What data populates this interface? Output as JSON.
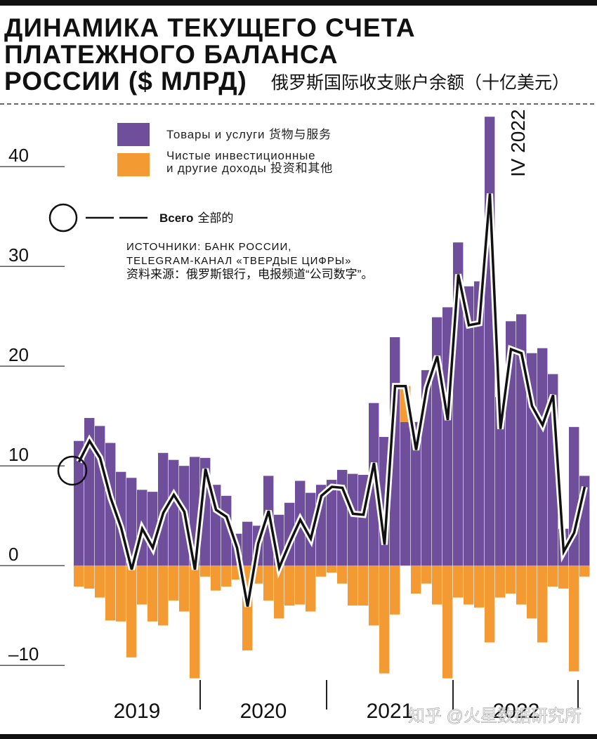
{
  "chart_data": {
    "type": "bar",
    "title_lines": [
      "ДИНАМИКА ТЕКУЩЕГО СЧЕТА",
      "ПЛАТЕЖНОГО БАЛАНСА",
      "РОССИИ ($ МЛРД)"
    ],
    "subtitle": "俄罗斯国际收支账户余额（十亿美元）",
    "categories": [
      null,
      null,
      null,
      null,
      null,
      null,
      null,
      null,
      null,
      null,
      null,
      null,
      null,
      null,
      null,
      null,
      null,
      null,
      null,
      null,
      null,
      null,
      null,
      null,
      null,
      null,
      null,
      null,
      null,
      null,
      null,
      null,
      null,
      null,
      null,
      null,
      null,
      null,
      null,
      null,
      null,
      null,
      null,
      null,
      null,
      null,
      null,
      null,
      null
    ],
    "year_labels": [
      "2019",
      "2020",
      "2021",
      "2022"
    ],
    "series": [
      {
        "legend_lines": [
          "Товары и услуги 货物与服务"
        ],
        "color": "#6f4e9c",
        "values": [
          12.5,
          14.8,
          14,
          12.3,
          9.4,
          8.8,
          7.6,
          7.4,
          11.3,
          10.6,
          10,
          10.9,
          10.8,
          8.1,
          7,
          3.2,
          4.4,
          4,
          9,
          5.1,
          6.3,
          8.5,
          7.3,
          8.1,
          8.6,
          9.6,
          9.2,
          9.1,
          16.3,
          12.9,
          22.9,
          14.4,
          14.4,
          19.6,
          24.9,
          25.9,
          32.4,
          28,
          28.5,
          45,
          16.9,
          24.5,
          25.2,
          21.3,
          21.8,
          19.2,
          3.7,
          13.9,
          9
        ]
      },
      {
        "legend_lines": [
          "Чистые инвестиционные",
          "и другие доходы 投资和其他"
        ],
        "color": "#f39a33",
        "values": [
          -2.1,
          -2.3,
          -3.2,
          -5.5,
          -5.6,
          -9.2,
          -3.9,
          -5.6,
          -6,
          -3.5,
          -4.6,
          -11.3,
          -1.1,
          -2.5,
          -2.1,
          -1.4,
          -8.5,
          -1.8,
          -3.5,
          -5.3,
          -4,
          -3.9,
          -4.6,
          -1.1,
          -0.7,
          -1.8,
          -4,
          -4,
          -6,
          -10.8,
          -4.9,
          3.6,
          -2.8,
          -1.8,
          -3.9,
          -11.3,
          -3.2,
          -3.9,
          -4.2,
          -7.7,
          -3.2,
          -2.8,
          -3.9,
          -5.3,
          -7.7,
          -2.1,
          -2.3,
          -10.6,
          -1.1
        ]
      }
    ],
    "total": {
      "name": "Всего",
      "name_zh": "全部的",
      "color": "#111111",
      "values": [
        10.4,
        12.5,
        10.8,
        6.8,
        3.8,
        -0.4,
        3.7,
        1.8,
        5.3,
        7.1,
        5.4,
        -0.4,
        9.7,
        5.6,
        4.9,
        1.8,
        -4.1,
        2.2,
        5.5,
        -0.2,
        2.3,
        4.6,
        2.7,
        7,
        7.9,
        7.8,
        5.2,
        5.1,
        10.3,
        2.1,
        18,
        18,
        11.6,
        17.8,
        21,
        14.6,
        29.2,
        24.1,
        24.3,
        37.3,
        13.7,
        21.7,
        21.3,
        16,
        14.1,
        17.1,
        1.4,
        3.3,
        7.9
      ]
    },
    "annotation": "IV 2022",
    "sources": [
      "ИСТОЧНИКИ:  БАНК РОССИИ,",
      "TELEGRAM-КАНАЛ  «ТВЕРДЫЕ ЦИФРЫ»",
      "资料来源：俄罗斯银行，电报频道“公司数字”。"
    ],
    "watermark": "知乎 @火星数据研究所",
    "ylim": [
      -12,
      46
    ],
    "yticks": [
      {
        "value": -10,
        "label": "–10"
      },
      0,
      10,
      20,
      30,
      40
    ]
  }
}
